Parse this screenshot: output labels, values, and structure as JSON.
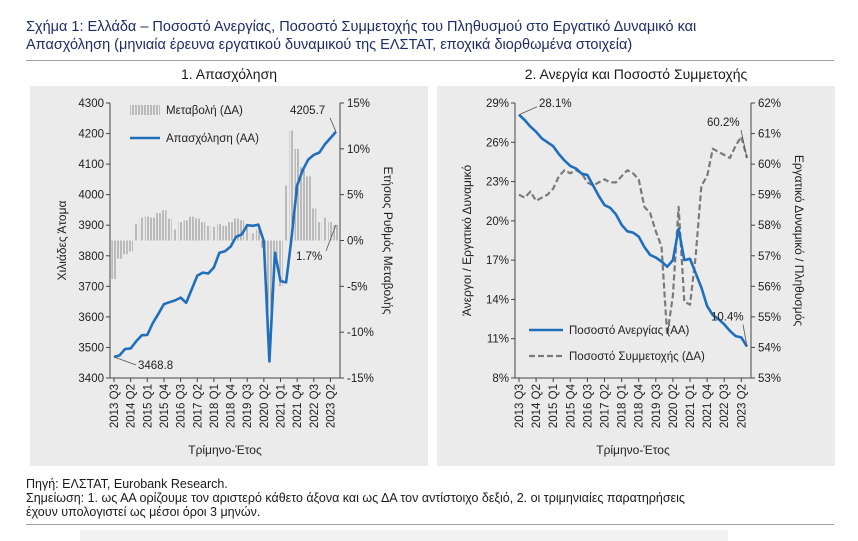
{
  "figure": {
    "title_line1": "Σχήμα 1: Ελλάδα – Ποσοστό Ανεργίας, Ποσοστό Συμμετοχής του Πληθυσμού στο Εργατικό Δυναμικό και",
    "title_line2": "Απασχόληση (μηνιαία έρευνα εργατικού δυναμικού της ΕΛΣΤΑΤ, εποχικά διορθωμένα στοιχεία)",
    "source": "Πηγή: ΕΛΣΤΑΤ, Eurobank Research.",
    "note_line1": "Σημείωση: 1. ως ΑΑ ορίζουμε τον αριστερό κάθετο άξονα και ως ΔΑ τον αντίστοιχο δεξιό, 2. οι τριμηνιαίες παρατηρήσεις",
    "note_line2": "έχουν υπολογιστεί ως μέσοι όροι 3 μηνών."
  },
  "chart_data": [
    {
      "type": "line",
      "title": "1. Απασχόληση",
      "xlabel": "Τρίμηνο-Έτος",
      "ylabel": "Χιλιάδες Άτομα",
      "ylabel_right": "Ετήσιος Ρυθμός Μεταβολής",
      "ylim": [
        3400,
        4300
      ],
      "yticks": [
        "3400",
        "3500",
        "3600",
        "3700",
        "3800",
        "3900",
        "4000",
        "4100",
        "4200",
        "4300"
      ],
      "ylim_right": [
        -15,
        15
      ],
      "yticks_right": [
        "-15%",
        "-10%",
        "-5%",
        "0%",
        "5%",
        "10%",
        "15%"
      ],
      "xtick_labels": [
        "2013 Q3",
        "2014 Q2",
        "2015 Q1",
        "2015 Q4",
        "2016 Q3",
        "2017 Q2",
        "2018 Q1",
        "2018 Q4",
        "2019 Q3",
        "2020 Q2",
        "2021 Q1",
        "2021 Q4",
        "2022 Q3",
        "2023 Q2"
      ],
      "legend": "top-left",
      "annotations": {
        "first": "3468.8",
        "last": "4205.7",
        "last_change": "1.7%"
      },
      "series": [
        {
          "name": "Μεταβολή (ΔΑ)",
          "kind": "bar-hatched",
          "axis": "right",
          "values": [
            -4.2,
            -2.0,
            -1.5,
            -1.2,
            1.8,
            2.5,
            2.6,
            2.5,
            3.0,
            3.3,
            2.4,
            1.2,
            2.0,
            2.2,
            2.6,
            2.4,
            2.0,
            1.6,
            1.5,
            1.8,
            1.6,
            2.0,
            2.4,
            2.2,
            1.4,
            0.8,
            1.2,
            -0.8,
            -11.0,
            -2.0,
            -5.0,
            6.0,
            12.0,
            10.0,
            8.0,
            7.0,
            3.5,
            2.0,
            2.5,
            2.0,
            1.7
          ]
        },
        {
          "name": "Απασχόληση (ΑΑ)",
          "kind": "line",
          "axis": "left",
          "values": [
            3468.8,
            3474,
            3495,
            3497,
            3520,
            3540,
            3541,
            3580,
            3610,
            3642,
            3648,
            3654,
            3663,
            3646,
            3690,
            3735,
            3745,
            3742,
            3762,
            3810,
            3815,
            3830,
            3862,
            3870,
            3900,
            3898,
            3902,
            3848,
            3454,
            3810,
            3717,
            3713,
            3860,
            4030,
            4080,
            4115,
            4130,
            4138,
            4165,
            4185,
            4205.7
          ]
        }
      ]
    },
    {
      "type": "line",
      "title": "2. Ανεργία και Ποσοστό Συμμετοχής",
      "xlabel": "Τρίμηνο-Έτος",
      "ylabel": "Άνεργοι / Εργατικό Δυναμικό",
      "ylabel_right": "Εργατικό Δυναμικό / Πληθυσμός",
      "ylim": [
        8,
        29
      ],
      "yticks": [
        "8%",
        "11%",
        "14%",
        "17%",
        "20%",
        "23%",
        "26%",
        "29%"
      ],
      "ylim_right": [
        53,
        62
      ],
      "yticks_right": [
        "53%",
        "54%",
        "55%",
        "56%",
        "57%",
        "58%",
        "59%",
        "60%",
        "61%",
        "62%"
      ],
      "xtick_labels": [
        "2013 Q3",
        "2014 Q2",
        "2015 Q1",
        "2015 Q4",
        "2016 Q3",
        "2017 Q2",
        "2018 Q1",
        "2018 Q4",
        "2019 Q3",
        "2020 Q2",
        "2021 Q1",
        "2021 Q4",
        "2022 Q3",
        "2023 Q2"
      ],
      "legend": "bottom-center",
      "annotations": {
        "unemp_first": "28.1%",
        "unemp_last": "10.4%",
        "part_last": "60.2%"
      },
      "series": [
        {
          "name": "Ποσοστό Ανεργίας (ΑΑ)",
          "kind": "solid",
          "axis": "left",
          "values": [
            28.1,
            27.7,
            27.2,
            26.8,
            26.3,
            26.0,
            25.7,
            25.1,
            24.6,
            24.2,
            24.0,
            23.6,
            23.5,
            22.7,
            21.9,
            21.2,
            21.0,
            20.5,
            19.7,
            19.2,
            19.1,
            18.8,
            18.0,
            17.4,
            17.2,
            16.9,
            16.5,
            17.0,
            19.4,
            17.0,
            17.1,
            16.0,
            14.9,
            13.5,
            12.8,
            12.5,
            12.1,
            11.6,
            11.2,
            11.1,
            10.4
          ]
        },
        {
          "name": "Ποσοστό Συμμετοχής (ΔΑ)",
          "kind": "dashed",
          "axis": "right",
          "values": [
            59.0,
            58.9,
            59.1,
            58.8,
            58.9,
            59.0,
            59.2,
            59.6,
            59.8,
            59.7,
            59.8,
            59.7,
            59.4,
            59.3,
            59.4,
            59.5,
            59.4,
            59.4,
            59.6,
            59.8,
            59.7,
            59.5,
            58.6,
            58.4,
            57.8,
            57.3,
            54.4,
            55.7,
            58.6,
            55.5,
            55.4,
            57.0,
            59.3,
            59.6,
            60.5,
            60.4,
            60.3,
            60.2,
            60.6,
            60.9,
            60.2
          ]
        }
      ]
    }
  ]
}
